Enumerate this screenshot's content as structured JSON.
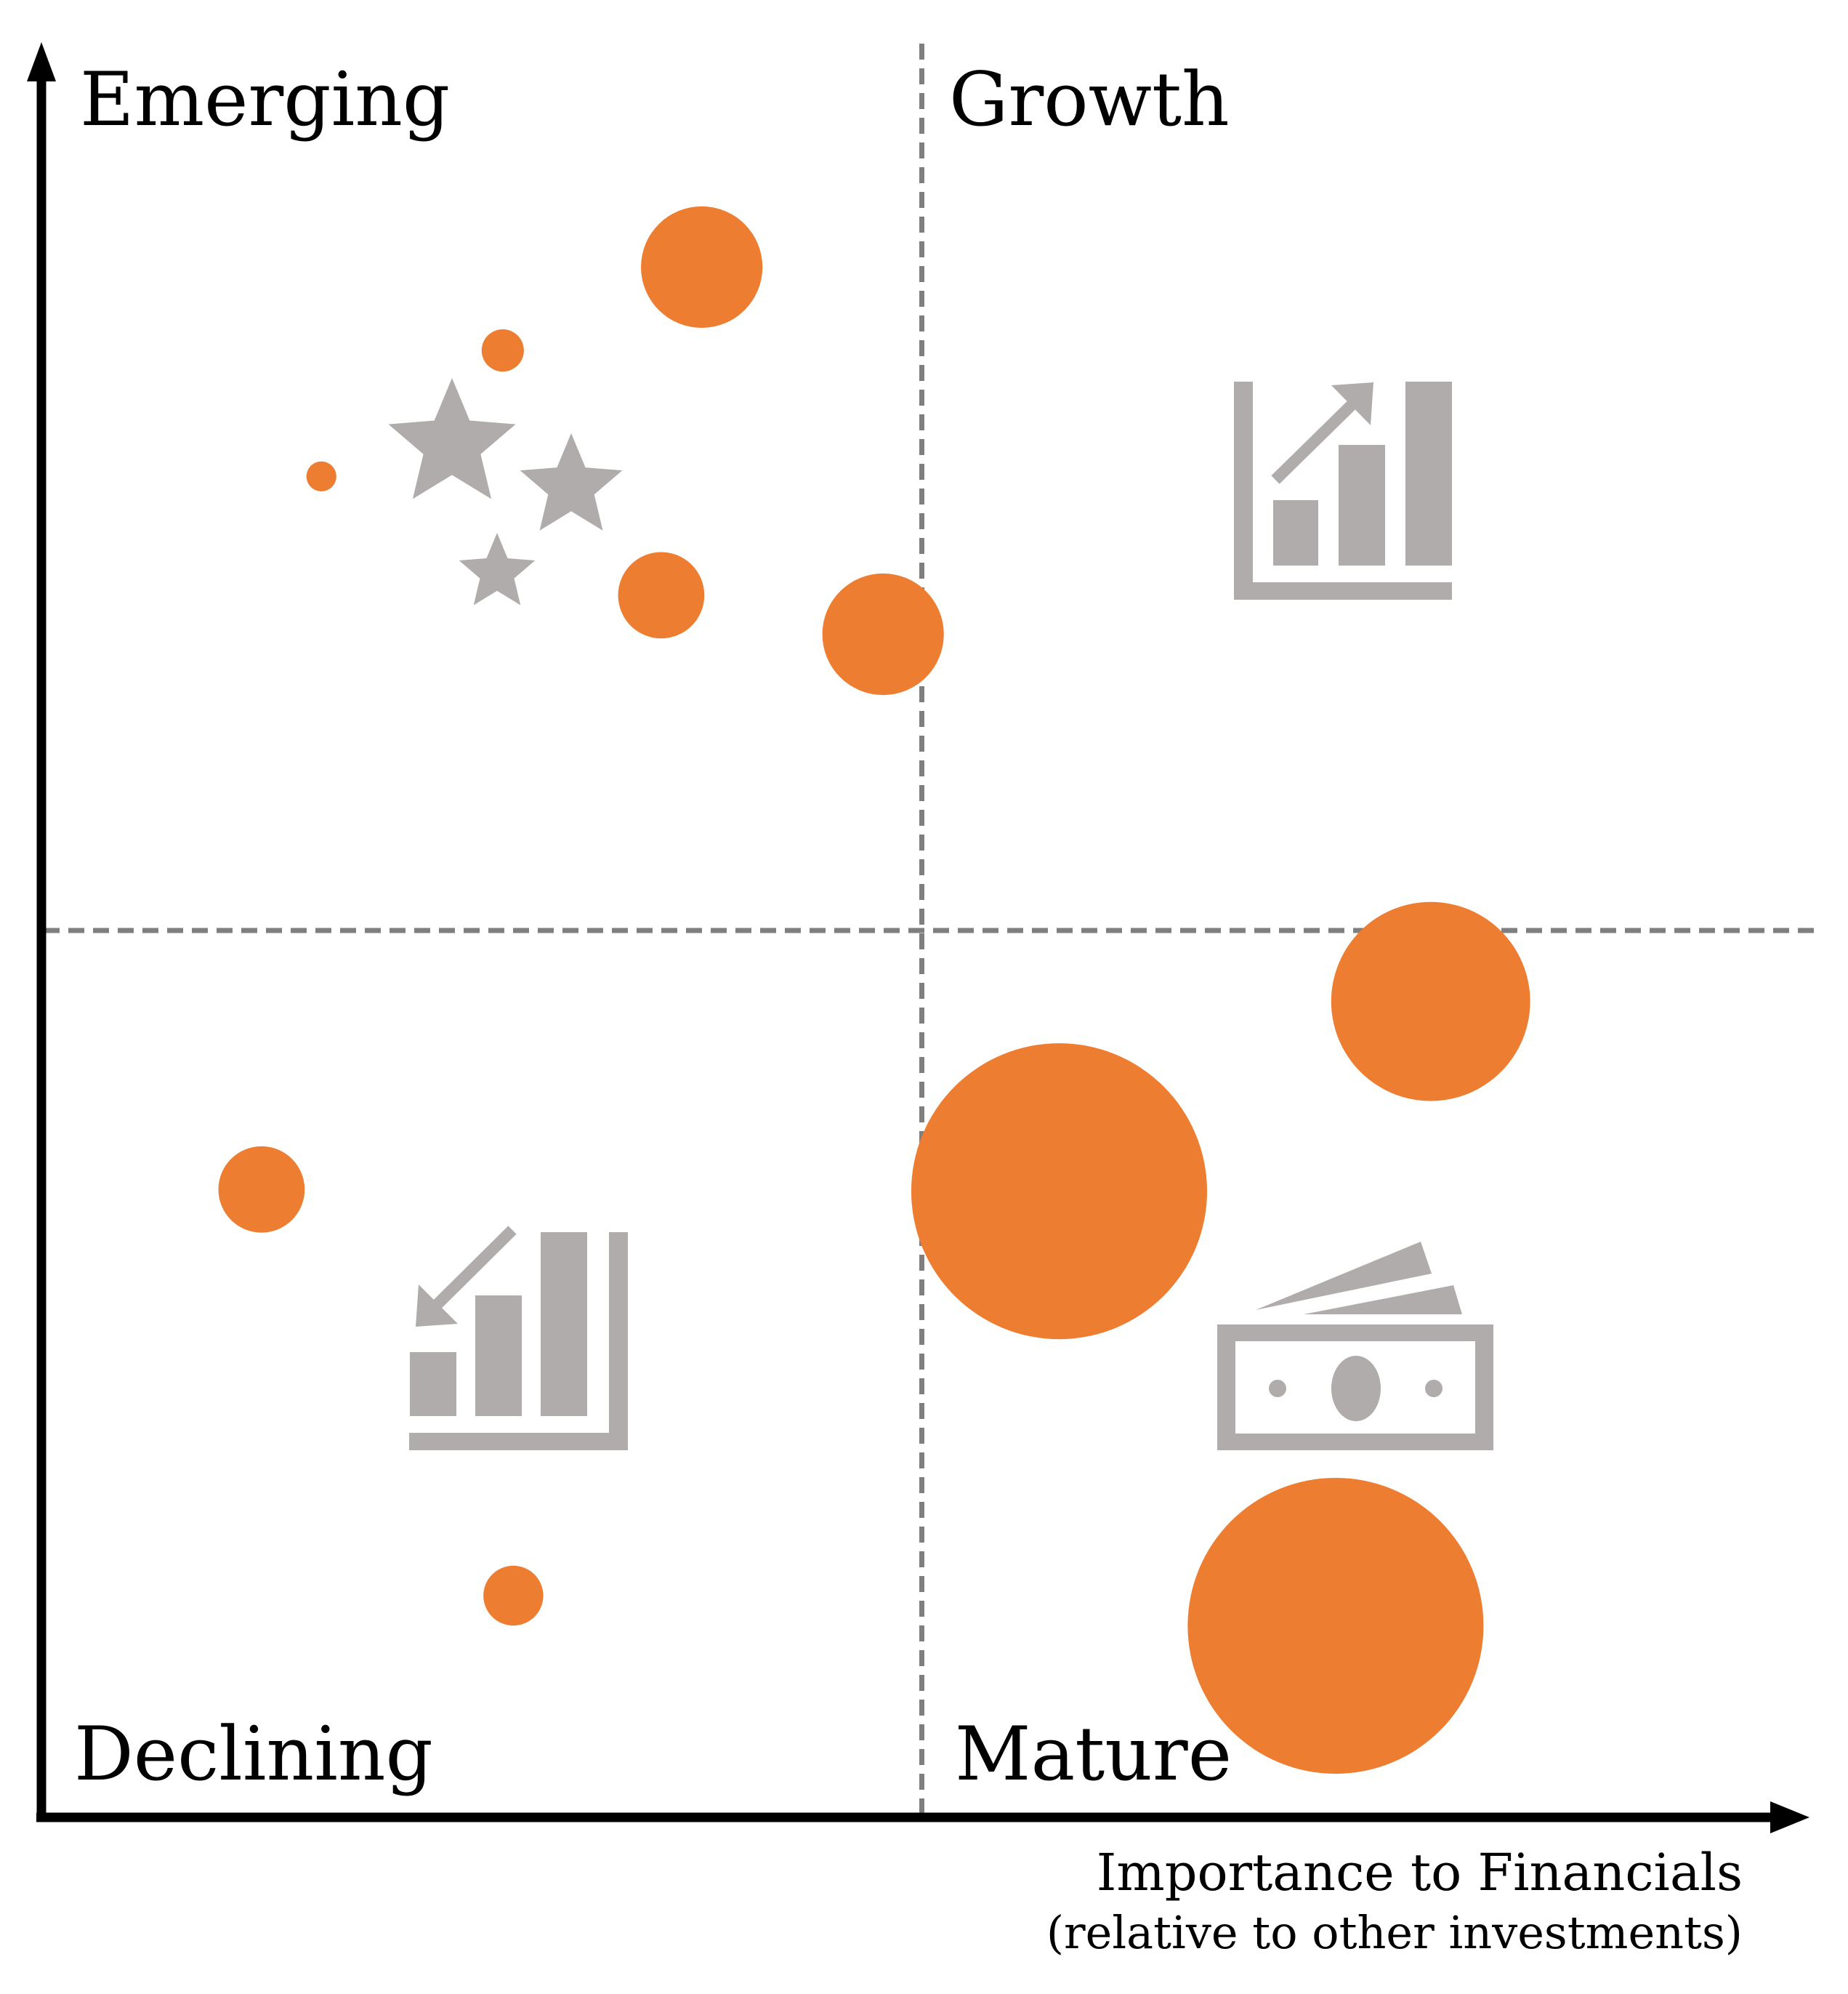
{
  "chart_data": {
    "type": "scatter",
    "title": "",
    "xlabel": "Importance to Financials",
    "xlabel_sub": "(relative to other investments)",
    "ylabel": "",
    "xlim": [
      0,
      100
    ],
    "ylim": [
      0,
      100
    ],
    "grid": false,
    "legend": "none",
    "axis_ticks": false,
    "quadrant_divider": {
      "x": 50,
      "y": 50,
      "style": "dashed"
    },
    "quadrants": [
      {
        "name": "Emerging",
        "position": "top-left",
        "icon": "stars-icon"
      },
      {
        "name": "Growth",
        "position": "top-right",
        "icon": "bar-chart-up-icon"
      },
      {
        "name": "Declining",
        "position": "bottom-left",
        "icon": "bar-chart-down-icon"
      },
      {
        "name": "Mature",
        "position": "bottom-right",
        "icon": "cash-stack-icon"
      }
    ],
    "bubble_color": "#ED7D31",
    "icon_color": "#AFACAB",
    "points": [
      {
        "x": 37.5,
        "y": 87.4,
        "size": 6.9
      },
      {
        "x": 26.2,
        "y": 82.7,
        "size": 2.4
      },
      {
        "x": 15.9,
        "y": 75.6,
        "size": 1.7
      },
      {
        "x": 35.2,
        "y": 68.9,
        "size": 4.9
      },
      {
        "x": 47.8,
        "y": 66.7,
        "size": 6.9
      },
      {
        "x": 78.9,
        "y": 46.0,
        "size": 11.3
      },
      {
        "x": 57.8,
        "y": 35.3,
        "size": 16.8
      },
      {
        "x": 12.5,
        "y": 35.4,
        "size": 4.9
      },
      {
        "x": 26.8,
        "y": 12.5,
        "size": 3.4
      },
      {
        "x": 73.5,
        "y": 10.8,
        "size": 16.8
      }
    ]
  },
  "colors": {
    "axis": "#000000",
    "divider": "#7F7F7F",
    "bubble": "#ED7D31",
    "icon": "#AFACAB"
  }
}
